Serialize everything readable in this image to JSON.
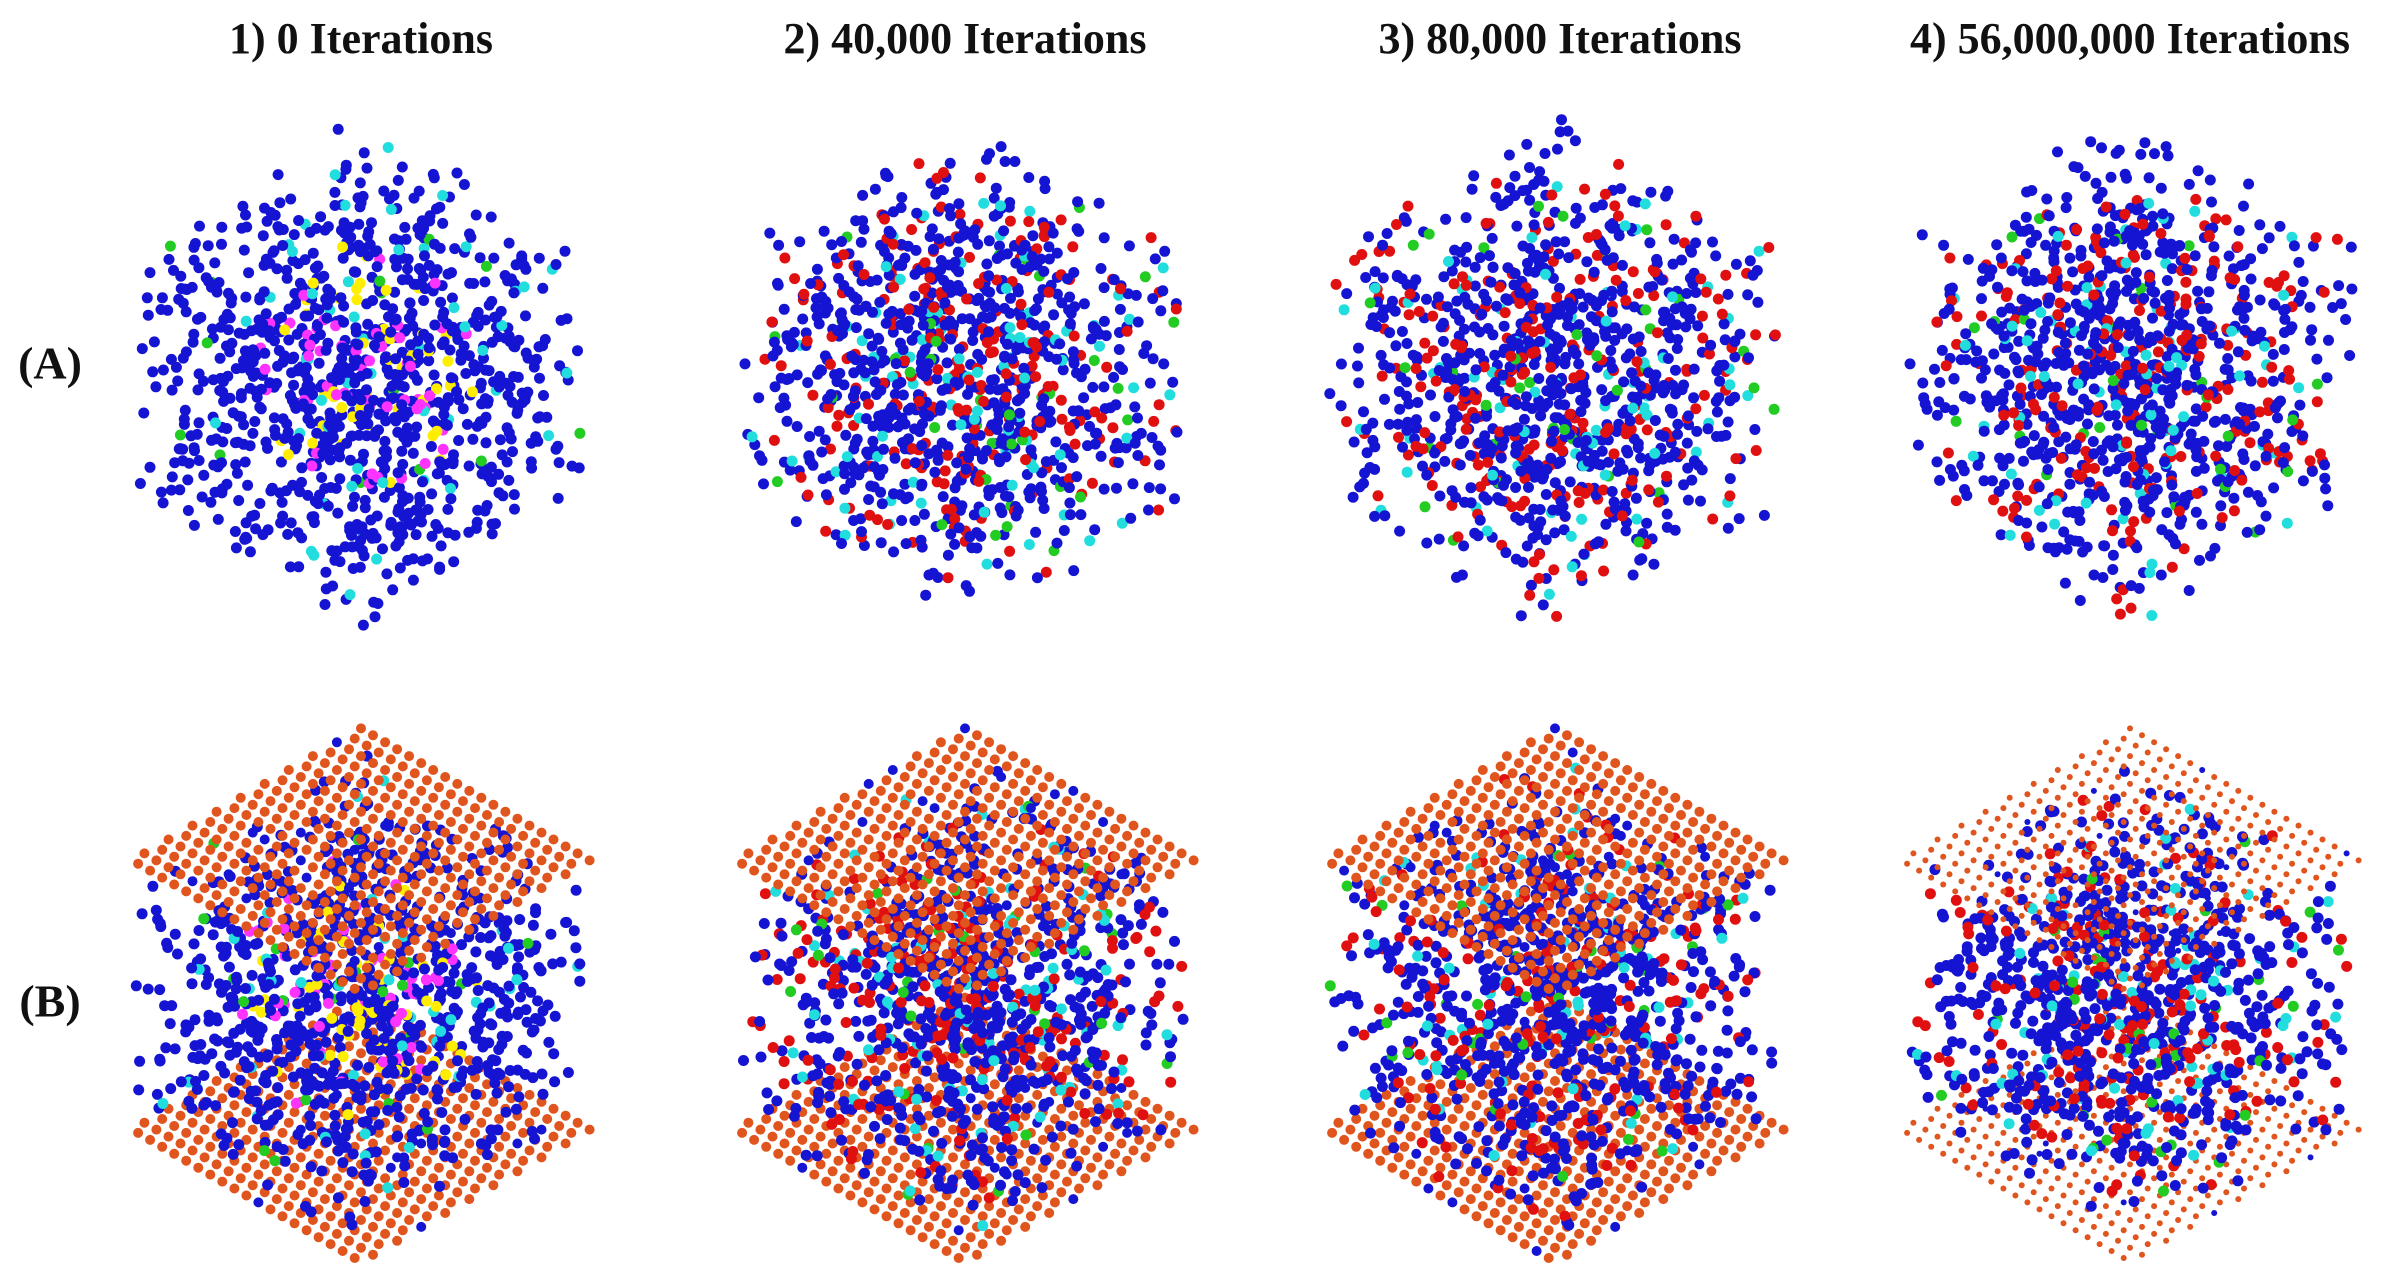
{
  "columns": [
    {
      "title": "1) 0 Iterations"
    },
    {
      "title": "2) 40,000 Iterations"
    },
    {
      "title": "3) 80,000 Iterations"
    },
    {
      "title": "4) 56,000,000 Iterations"
    }
  ],
  "rows": [
    {
      "label": "(A)"
    },
    {
      "label": "(B)"
    }
  ]
}
